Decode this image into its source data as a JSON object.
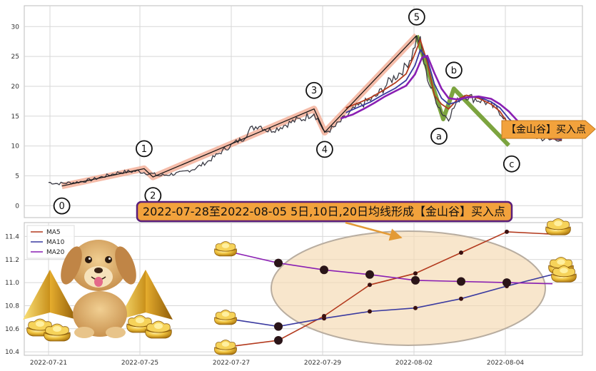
{
  "chart_data": [
    {
      "type": "line",
      "panel": "price-waves",
      "yticks": [
        0,
        5,
        10,
        15,
        20,
        25,
        30
      ],
      "ylim": [
        -2,
        33.5
      ],
      "grid": true,
      "price_series": [
        [
          0,
          3.9
        ],
        [
          10,
          3.7
        ],
        [
          20,
          3.8
        ],
        [
          30,
          3.9
        ],
        [
          40,
          4.1
        ],
        [
          50,
          4.4
        ],
        [
          60,
          4.8
        ],
        [
          70,
          5.2
        ],
        [
          80,
          5.6
        ],
        [
          90,
          5.7
        ],
        [
          100,
          5.8
        ],
        [
          110,
          5.5
        ],
        [
          118,
          5.3
        ],
        [
          125,
          5.0
        ],
        [
          135,
          5.2
        ],
        [
          150,
          5.5
        ],
        [
          165,
          6.2
        ],
        [
          180,
          7.4
        ],
        [
          195,
          9.0
        ],
        [
          210,
          10.5
        ],
        [
          220,
          11.3
        ],
        [
          228,
          12.8
        ],
        [
          238,
          13.5
        ],
        [
          248,
          12.6
        ],
        [
          258,
          12.9
        ],
        [
          268,
          13.6
        ],
        [
          278,
          14.2
        ],
        [
          288,
          14.6
        ],
        [
          296,
          15.3
        ],
        [
          300,
          15.6
        ],
        [
          304,
          14.5
        ],
        [
          308,
          13.5
        ],
        [
          312,
          12.0
        ],
        [
          316,
          12.6
        ],
        [
          322,
          13.0
        ],
        [
          330,
          14.1
        ],
        [
          338,
          15.1
        ],
        [
          346,
          16.3
        ],
        [
          354,
          17.0
        ],
        [
          362,
          17.6
        ],
        [
          370,
          18.3
        ],
        [
          378,
          19.6
        ],
        [
          386,
          21.0
        ],
        [
          394,
          21.9
        ],
        [
          402,
          23.0
        ],
        [
          410,
          25.0
        ],
        [
          416,
          28.0
        ],
        [
          420,
          27.5
        ],
        [
          424,
          24.0
        ],
        [
          430,
          20.5
        ],
        [
          436,
          18.5
        ],
        [
          440,
          17.0
        ],
        [
          446,
          15.2
        ],
        [
          452,
          14.8
        ],
        [
          458,
          16.4
        ],
        [
          464,
          18.0
        ],
        [
          470,
          18.6
        ],
        [
          476,
          18.2
        ],
        [
          484,
          17.8
        ],
        [
          492,
          17.5
        ],
        [
          500,
          16.8
        ],
        [
          508,
          16.1
        ],
        [
          514,
          15.0
        ],
        [
          520,
          13.2
        ],
        [
          528,
          12.0
        ],
        [
          536,
          12.2
        ],
        [
          544,
          11.7
        ],
        [
          552,
          11.4
        ],
        [
          560,
          11.2
        ],
        [
          566,
          11.0
        ],
        [
          574,
          11.3
        ],
        [
          580,
          10.9
        ]
      ],
      "series": [
        {
          "name": "MA5",
          "points": [
            [
              336,
              16.4
            ],
            [
              350,
              17.2
            ],
            [
              364,
              18.1
            ],
            [
              378,
              19.3
            ],
            [
              392,
              20.6
            ],
            [
              404,
              22.1
            ],
            [
              414,
              25.5
            ],
            [
              420,
              27.8
            ],
            [
              428,
              24.0
            ],
            [
              436,
              18.5
            ],
            [
              444,
              17.0
            ],
            [
              452,
              16.2
            ],
            [
              462,
              17.8
            ],
            [
              472,
              18.5
            ],
            [
              486,
              18.0
            ],
            [
              500,
              17.0
            ],
            [
              510,
              15.8
            ],
            [
              520,
              13.6
            ],
            [
              530,
              12.3
            ],
            [
              544,
              11.8
            ],
            [
              558,
              11.4
            ],
            [
              570,
              11.2
            ],
            [
              580,
              11.0
            ]
          ]
        },
        {
          "name": "MA10",
          "points": [
            [
              336,
              15.6
            ],
            [
              350,
              16.5
            ],
            [
              364,
              17.4
            ],
            [
              378,
              18.6
            ],
            [
              392,
              19.7
            ],
            [
              404,
              21.0
            ],
            [
              414,
              23.5
            ],
            [
              420,
              26.1
            ],
            [
              428,
              24.6
            ],
            [
              436,
              20.4
            ],
            [
              444,
              18.0
            ],
            [
              452,
              17.0
            ],
            [
              462,
              17.4
            ],
            [
              472,
              18.2
            ],
            [
              486,
              18.2
            ],
            [
              500,
              17.4
            ],
            [
              510,
              16.4
            ],
            [
              520,
              14.6
            ],
            [
              530,
              13.2
            ],
            [
              544,
              12.2
            ],
            [
              558,
              11.6
            ],
            [
              570,
              11.3
            ],
            [
              580,
              11.1
            ]
          ]
        },
        {
          "name": "MA20",
          "points": [
            [
              330,
              14.6
            ],
            [
              344,
              15.3
            ],
            [
              356,
              16.2
            ],
            [
              368,
              17.2
            ],
            [
              380,
              18.3
            ],
            [
              392,
              19.2
            ],
            [
              404,
              20.1
            ],
            [
              414,
              22.0
            ],
            [
              422,
              24.8
            ],
            [
              428,
              25.1
            ],
            [
              436,
              22.2
            ],
            [
              444,
              19.6
            ],
            [
              452,
              18.0
            ],
            [
              462,
              17.8
            ],
            [
              472,
              18.1
            ],
            [
              486,
              18.3
            ],
            [
              500,
              17.9
            ],
            [
              510,
              17.0
            ],
            [
              520,
              15.8
            ],
            [
              530,
              14.2
            ],
            [
              544,
              12.8
            ],
            [
              558,
              12.0
            ],
            [
              570,
              11.6
            ],
            [
              580,
              11.4
            ]
          ]
        }
      ],
      "impulse_waves": [
        {
          "label": "0",
          "x": 15,
          "y": 3.3
        },
        {
          "label": "1",
          "x": 108,
          "y": 6.2
        },
        {
          "label": "2",
          "x": 118,
          "y": 4.8
        },
        {
          "label": "3",
          "x": 300,
          "y": 16.2
        },
        {
          "label": "4",
          "x": 312,
          "y": 12.3
        },
        {
          "label": "5",
          "x": 416,
          "y": 28.5
        }
      ],
      "corrective_waves": [
        {
          "label": "a",
          "x": 446,
          "y": 14.5
        },
        {
          "label": "b",
          "x": 458,
          "y": 19.6
        },
        {
          "label": "c",
          "x": 520,
          "y": 10.1
        }
      ],
      "signal": "【金山谷】买入点"
    },
    {
      "type": "line",
      "panel": "moving-averages",
      "banner": "2022-07-28至2022-08-05 5日,10日,20日均线形成【金山谷】买入点",
      "x_tick_labels": [
        "2022-07-21",
        "2022-07-25",
        "2022-07-27",
        "2022-07-29",
        "2022-08-02",
        "2022-08-04"
      ],
      "yticks": [
        10.4,
        10.6,
        10.8,
        11.0,
        11.2,
        11.4
      ],
      "ylim": [
        10.37,
        11.52
      ],
      "grid": true,
      "legend_position": "top-left",
      "series": [
        {
          "name": "MA5",
          "color": "#b33a1e",
          "values": [
            10.45,
            10.5,
            10.71,
            10.98,
            11.08,
            11.26,
            11.44,
            11.42
          ]
        },
        {
          "name": "MA10",
          "color": "#3a3aa0",
          "values": [
            10.68,
            10.62,
            10.69,
            10.75,
            10.78,
            10.86,
            10.97,
            11.07
          ]
        },
        {
          "name": "MA20",
          "color": "#8a1fb3",
          "values": [
            11.26,
            11.17,
            11.11,
            11.07,
            11.02,
            11.01,
            11.0,
            10.99
          ]
        }
      ],
      "golden_valley_points": [
        {
          "series": "MA5",
          "index": 1
        },
        {
          "series": "MA10",
          "index": 1
        },
        {
          "series": "MA20",
          "index": 1
        },
        {
          "series": "MA20",
          "index": 2
        },
        {
          "series": "MA20",
          "index": 3
        },
        {
          "series": "MA20",
          "index": 4
        },
        {
          "series": "MA20",
          "index": 5
        },
        {
          "series": "MA20",
          "index": 6
        }
      ]
    }
  ],
  "colors": {
    "price_line": "#3a3a44",
    "impulse_band": "#f2a58c",
    "impulse_line": "#111111",
    "corrective_band": "#6e9a2a",
    "ma5": "#b33a1e",
    "ma10": "#3a3aa0",
    "ma20": "#8a1fb3",
    "signal_box": "#f2a23c",
    "banner_box": "#f2a23c",
    "banner_border": "#5a1e7a",
    "highlight_ellipse": "#f5d9b0",
    "grid": "#d7d7d7"
  },
  "decorations": [
    "golden-ingot-icon",
    "puppy-icon",
    "gold-pyramid-icon"
  ]
}
